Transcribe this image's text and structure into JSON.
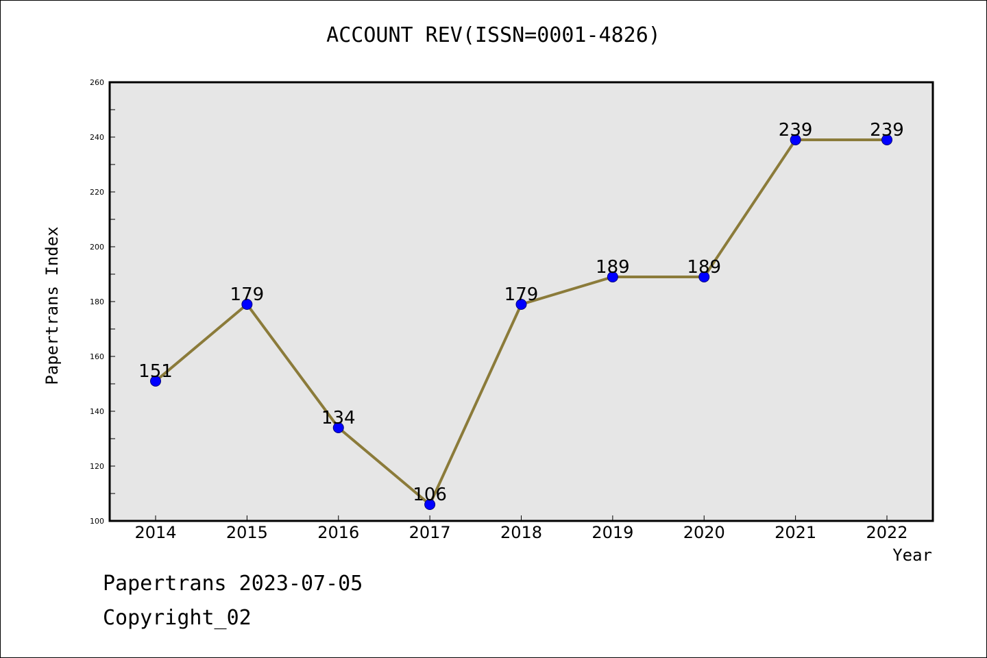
{
  "chart_data": {
    "type": "line",
    "title": "ACCOUNT REV(ISSN=0001-4826)",
    "xlabel": "Year",
    "ylabel": "Papertrans Index",
    "categories": [
      "2014",
      "2015",
      "2016",
      "2017",
      "2018",
      "2019",
      "2020",
      "2021",
      "2022"
    ],
    "series": [
      {
        "values": [
          151,
          179,
          134,
          106,
          179,
          189,
          189,
          239,
          239
        ]
      }
    ],
    "data_labels": [
      "151",
      "179",
      "134",
      "106",
      "179",
      "189",
      "189",
      "239",
      "239"
    ],
    "ylim": [
      100,
      260
    ],
    "yticks": [
      "100",
      "120",
      "140",
      "160",
      "180",
      "200",
      "220",
      "240",
      "260"
    ],
    "grid": false,
    "colors": {
      "line": "#8B7B3A",
      "marker": "#0000FF",
      "plot_background": "#E6E6E6"
    }
  },
  "footer": {
    "line1": "Papertrans 2023-07-05",
    "line2": "Copyright_02"
  }
}
